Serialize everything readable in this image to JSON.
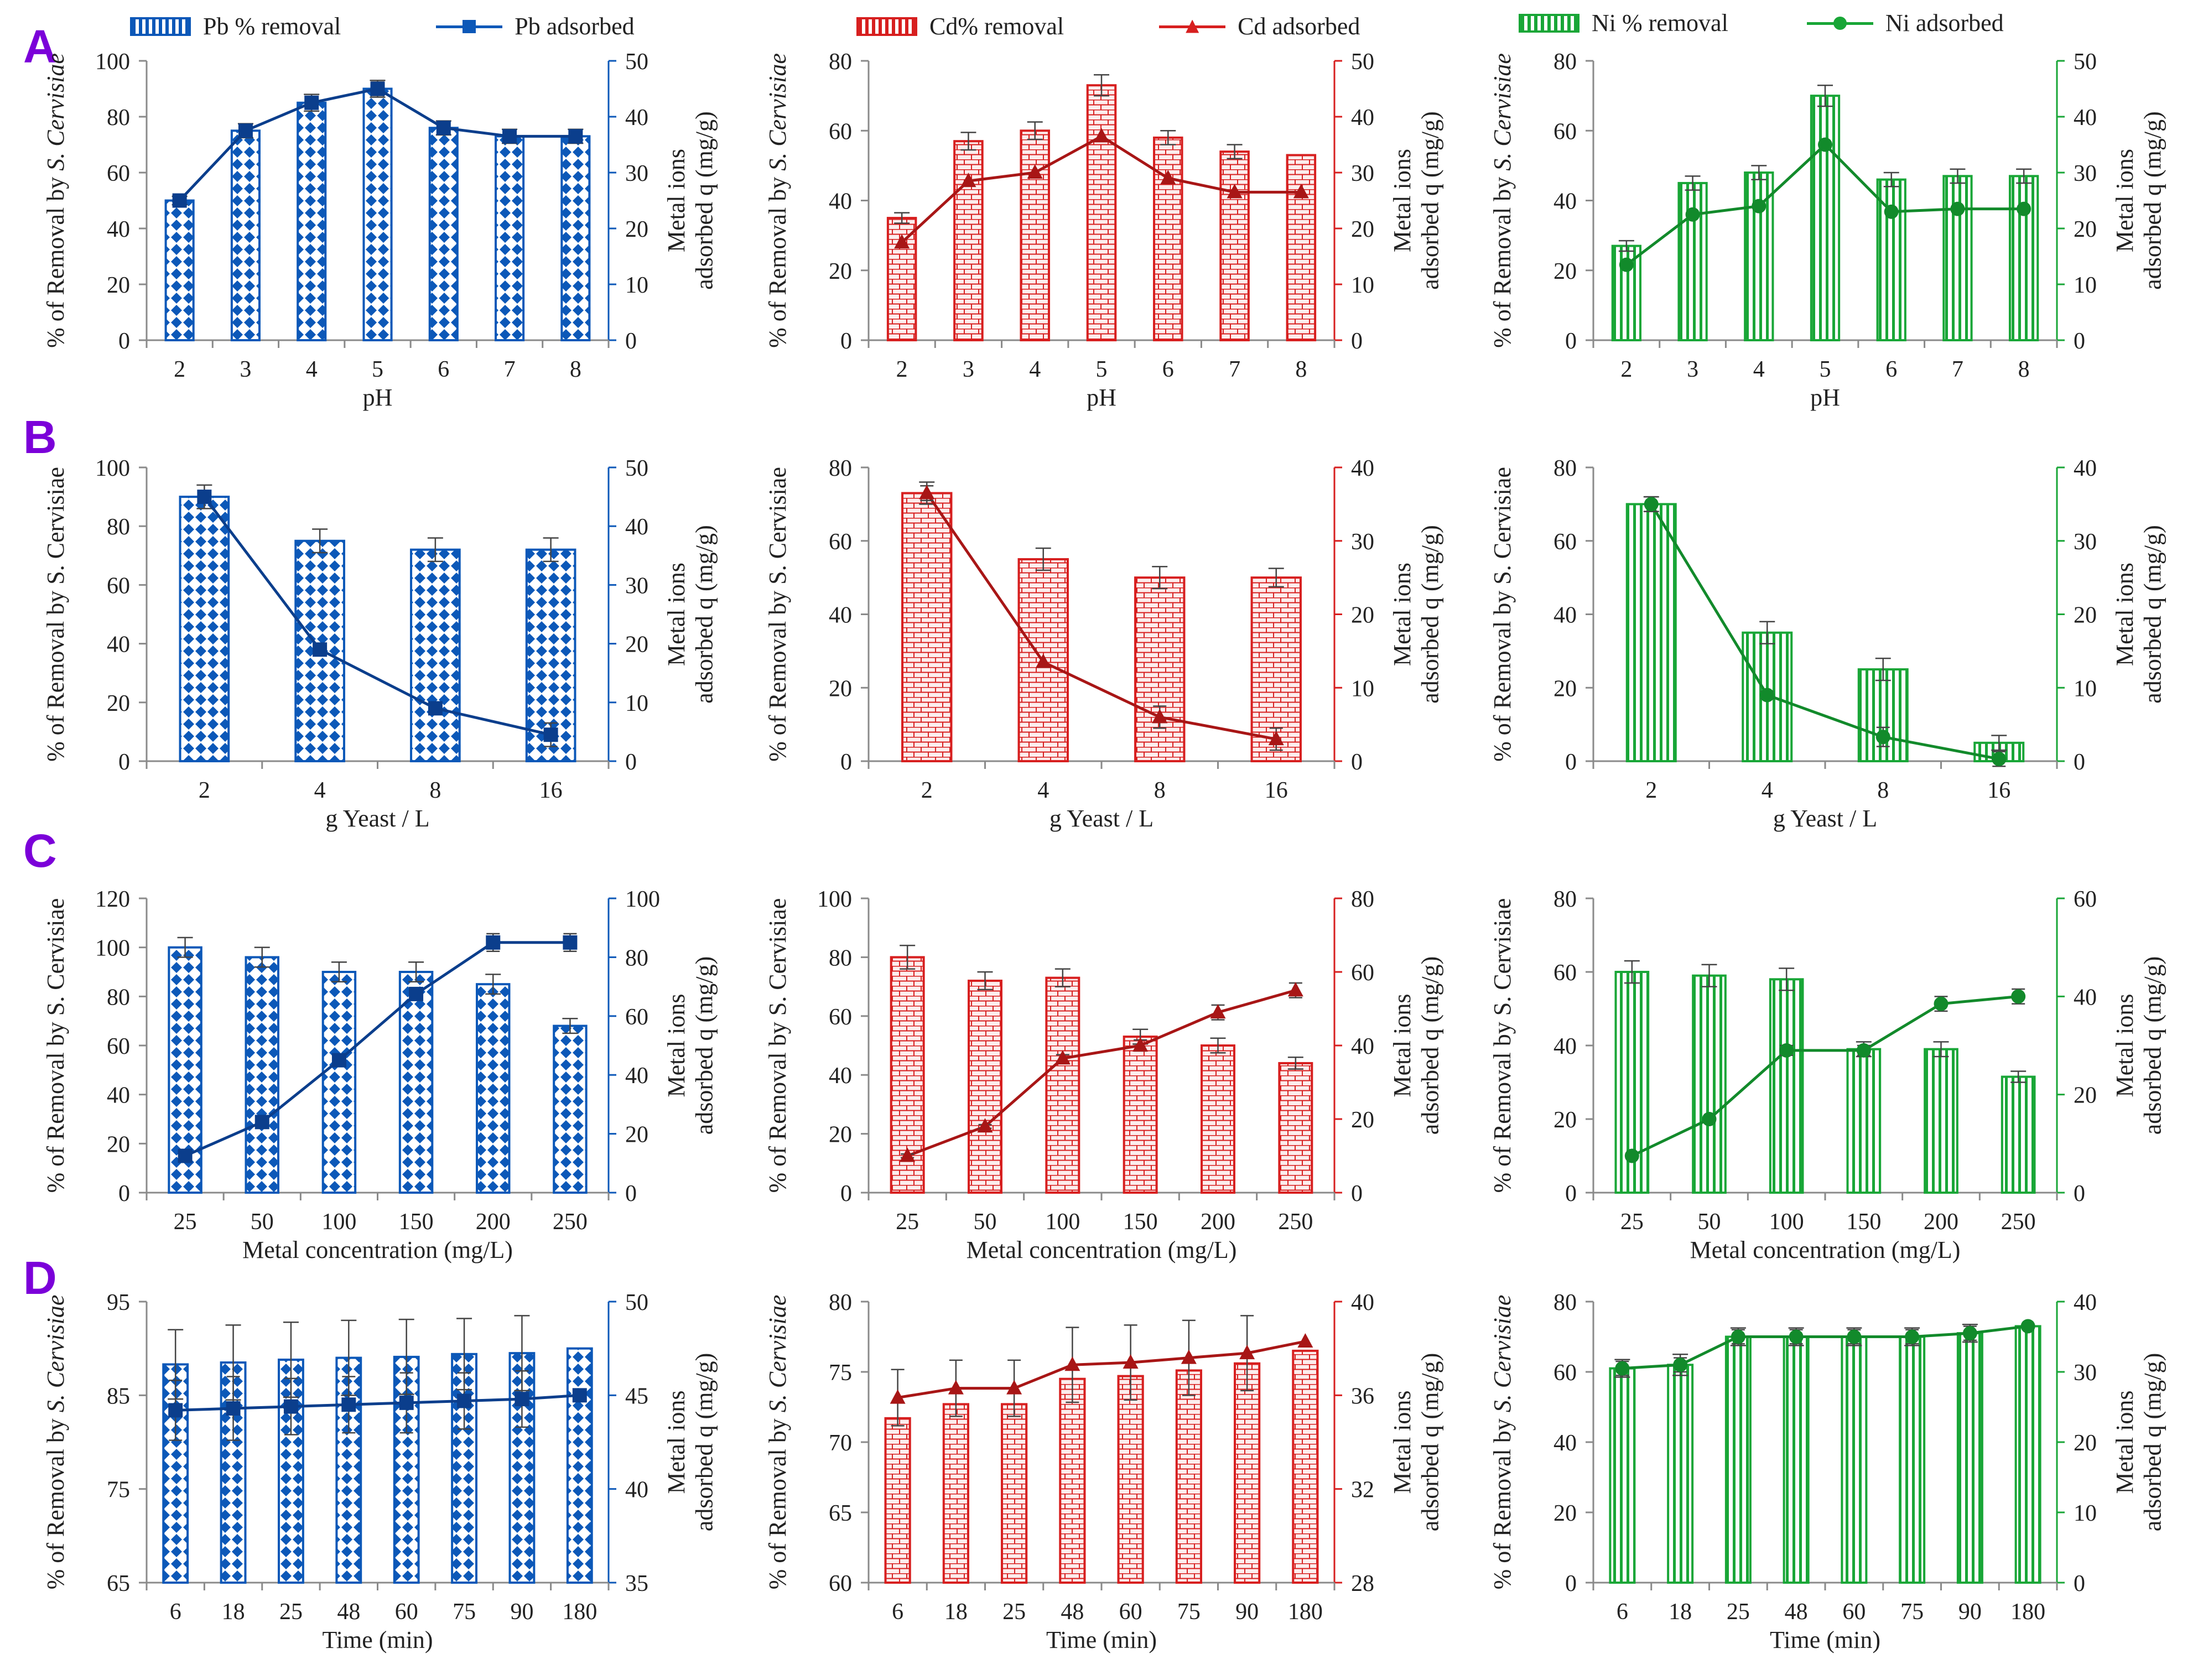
{
  "legends": [
    {
      "bar_label": "Pb % removal",
      "line_label": "Pb adsorbed",
      "color": "#0C58B8",
      "marker": "square",
      "pattern": "diamond"
    },
    {
      "bar_label": "Cd% removal",
      "line_label": "Cd adsorbed",
      "color": "#D71F1F",
      "marker": "triangle",
      "pattern": "brick"
    },
    {
      "bar_label": "Ni % removal",
      "line_label": "Ni adsorbed",
      "color": "#19A637",
      "marker": "circle",
      "pattern": "vstripe"
    }
  ],
  "row_labels": [
    "A",
    "B",
    "C",
    "D"
  ],
  "metals": [
    {
      "color": "#0C58B8",
      "dark": "#0B3E8C",
      "marker": "square",
      "pattern": "diamond"
    },
    {
      "color": "#D71F1F",
      "dark": "#A81616",
      "marker": "triangle",
      "pattern": "brick"
    },
    {
      "color": "#19A637",
      "dark": "#128A2B",
      "marker": "circle",
      "pattern": "vstripe"
    }
  ],
  "chart_data": [
    {
      "type": "bar+line",
      "row": "A",
      "metal": "Pb",
      "xlabel": "pH",
      "ylabel": "% of Removal by S. Cervisiae",
      "ylabel_italic_part": "S. Cervisiae",
      "y2label": [
        "Metal ions",
        "adsorbed q (mg/g)"
      ],
      "categories": [
        "2",
        "3",
        "4",
        "5",
        "6",
        "7",
        "8"
      ],
      "bars": [
        50,
        75,
        85,
        90,
        76,
        73,
        73
      ],
      "bar_err": [
        1.5,
        2.5,
        3,
        3,
        2.5,
        2.5,
        2.5
      ],
      "line": [
        25,
        37.5,
        42.5,
        45,
        38,
        36.5,
        36.5
      ],
      "line_err": [
        0.6,
        1,
        1,
        1.2,
        1,
        1,
        1
      ],
      "ylim": [
        0,
        100
      ],
      "yticks": [
        0,
        20,
        40,
        60,
        80,
        100
      ],
      "y2lim": [
        0,
        50
      ],
      "y2ticks": [
        0,
        10,
        20,
        30,
        40,
        50
      ]
    },
    {
      "type": "bar+line",
      "row": "A",
      "metal": "Cd",
      "xlabel": "pH",
      "ylabel": "% of Removal by S. Cervisiae",
      "ylabel_italic_part": "S. Cervisiae",
      "y2label": [
        "Metal ions",
        "adsorbed q (mg/g)"
      ],
      "categories": [
        "2",
        "3",
        "4",
        "5",
        "6",
        "7",
        "8"
      ],
      "bars": [
        35,
        57,
        60,
        73,
        58,
        54,
        53
      ],
      "bar_err": [
        1.5,
        2.5,
        2.5,
        3,
        2,
        2,
        0
      ],
      "line": [
        17.5,
        28.5,
        30,
        36.5,
        29,
        26.5,
        26.5
      ],
      "line_err": [
        0,
        0,
        0,
        0,
        0,
        0,
        0
      ],
      "ylim": [
        0,
        80
      ],
      "yticks": [
        0,
        20,
        40,
        60,
        80
      ],
      "y2lim": [
        0,
        50
      ],
      "y2ticks": [
        0,
        10,
        20,
        30,
        40,
        50
      ]
    },
    {
      "type": "bar+line",
      "row": "A",
      "metal": "Ni",
      "xlabel": "pH",
      "ylabel": "% of Removal by S. Cervisiae",
      "ylabel_italic_part": "S. Cervisiae",
      "y2label": [
        "Metal ions",
        "adsorbed q (mg/g)"
      ],
      "categories": [
        "2",
        "3",
        "4",
        "5",
        "6",
        "7",
        "8"
      ],
      "bars": [
        27,
        45,
        48,
        70,
        46,
        47,
        47
      ],
      "bar_err": [
        1.5,
        2,
        2,
        3,
        2,
        2,
        2
      ],
      "line": [
        13.5,
        22.5,
        24,
        35,
        23,
        23.5,
        23.5
      ],
      "line_err": [
        0,
        0,
        0,
        0,
        0,
        0,
        0
      ],
      "ylim": [
        0,
        80
      ],
      "yticks": [
        0,
        20,
        40,
        60,
        80
      ],
      "y2lim": [
        0,
        50
      ],
      "y2ticks": [
        0,
        10,
        20,
        30,
        40,
        50
      ]
    },
    {
      "type": "bar+line",
      "row": "B",
      "metal": "Pb",
      "xlabel": "g Yeast / L",
      "ylabel": "% of Removal by S. Cervisiae",
      "ylabel_italic_part": "",
      "y2label": [
        "Metal ions",
        "adsorbed q (mg/g)"
      ],
      "categories": [
        "2",
        "4",
        "8",
        "16"
      ],
      "bars": [
        90,
        75,
        72,
        72
      ],
      "bar_err": [
        4,
        4,
        4,
        4
      ],
      "line": [
        45,
        19,
        9,
        4.5
      ],
      "line_err": [
        1,
        0,
        1,
        2
      ],
      "ylim": [
        0,
        100
      ],
      "yticks": [
        0,
        20,
        40,
        60,
        80,
        100
      ],
      "y2lim": [
        0,
        50
      ],
      "y2ticks": [
        0,
        10,
        20,
        30,
        40,
        50
      ]
    },
    {
      "type": "bar+line",
      "row": "B",
      "metal": "Cd",
      "xlabel": "g Yeast / L",
      "ylabel": "% of Removal by S. Cervisiae",
      "ylabel_italic_part": "",
      "y2label": [
        "Metal ions",
        "adsorbed q (mg/g)"
      ],
      "categories": [
        "2",
        "4",
        "8",
        "16"
      ],
      "bars": [
        73,
        55,
        50,
        50
      ],
      "bar_err": [
        3,
        3,
        3,
        2.5
      ],
      "line": [
        36.5,
        13.5,
        6,
        3
      ],
      "line_err": [
        1,
        0,
        1.5,
        1.5
      ],
      "ylim": [
        0,
        80
      ],
      "yticks": [
        0,
        20,
        40,
        60,
        80
      ],
      "y2lim": [
        0,
        40
      ],
      "y2ticks": [
        0,
        10,
        20,
        30,
        40
      ]
    },
    {
      "type": "bar+line",
      "row": "B",
      "metal": "Ni",
      "xlabel": "g Yeast / L",
      "ylabel": "% of Removal by S. Cervisiae",
      "ylabel_italic_part": "",
      "y2label": [
        "Metal ions",
        "adsorbed q (mg/g)"
      ],
      "categories": [
        "2",
        "4",
        "8",
        "16"
      ],
      "bars": [
        70,
        35,
        25,
        5
      ],
      "bar_err": [
        2,
        3,
        3,
        2
      ],
      "line": [
        35,
        9,
        3.3,
        0.3
      ],
      "line_err": [
        1,
        0.5,
        1.3,
        1
      ],
      "ylim": [
        0,
        80
      ],
      "yticks": [
        0,
        20,
        40,
        60,
        80
      ],
      "y2lim": [
        0,
        40
      ],
      "y2ticks": [
        0,
        10,
        20,
        30,
        40
      ]
    },
    {
      "type": "bar+line",
      "row": "C",
      "metal": "Pb",
      "xlabel": "Metal concentration (mg/L)",
      "ylabel": "% of Removal by S. Cervisiae",
      "ylabel_italic_part": "",
      "y2label": [
        "Metal ions",
        "adsorbed q (mg/g)"
      ],
      "categories": [
        "25",
        "50",
        "100",
        "150",
        "200",
        "250"
      ],
      "bars": [
        100,
        96,
        90,
        90,
        85,
        68
      ],
      "bar_err": [
        4,
        4,
        4,
        4,
        4,
        3
      ],
      "line": [
        12.5,
        24,
        45,
        67.5,
        85,
        85
      ],
      "line_err": [
        1.5,
        1,
        1.5,
        2,
        3,
        3
      ],
      "ylim": [
        0,
        120
      ],
      "yticks": [
        0,
        20,
        40,
        60,
        80,
        100,
        120
      ],
      "y2lim": [
        0,
        100
      ],
      "y2ticks": [
        0,
        20,
        40,
        60,
        80,
        100
      ]
    },
    {
      "type": "bar+line",
      "row": "C",
      "metal": "Cd",
      "xlabel": "Metal concentration (mg/L)",
      "ylabel": "% of Removal by S. Cervisiae",
      "ylabel_italic_part": "",
      "y2label": [
        "Metal ions",
        "adsorbed q (mg/g)"
      ],
      "categories": [
        "25",
        "50",
        "100",
        "150",
        "200",
        "250"
      ],
      "bars": [
        80,
        72,
        73,
        53,
        50,
        44
      ],
      "bar_err": [
        4,
        3,
        3,
        2.5,
        2.5,
        2
      ],
      "line": [
        10,
        18,
        36.5,
        40,
        49,
        55
      ],
      "line_err": [
        0.5,
        0.5,
        1,
        1.5,
        2,
        2
      ],
      "ylim": [
        0,
        100
      ],
      "yticks": [
        0,
        20,
        40,
        60,
        80,
        100
      ],
      "y2lim": [
        0,
        80
      ],
      "y2ticks": [
        0,
        20,
        40,
        60,
        80
      ]
    },
    {
      "type": "bar+line",
      "row": "C",
      "metal": "Ni",
      "xlabel": "Metal concentration (mg/L)",
      "ylabel": "% of Removal by S. Cervisiae",
      "ylabel_italic_part": "",
      "y2label": [
        "Metal ions",
        "adsorbed q (mg/g)"
      ],
      "categories": [
        "25",
        "50",
        "100",
        "150",
        "200",
        "250"
      ],
      "bars": [
        60,
        59,
        58,
        39,
        39,
        31.5
      ],
      "bar_err": [
        3,
        3,
        3,
        2,
        2,
        1.5
      ],
      "line": [
        7.5,
        15,
        29,
        29,
        38.5,
        40
      ],
      "line_err": [
        0.5,
        0.5,
        1,
        1,
        1.5,
        1.5
      ],
      "ylim": [
        0,
        80
      ],
      "yticks": [
        0,
        20,
        40,
        60,
        80
      ],
      "y2lim": [
        0,
        60
      ],
      "y2ticks": [
        0,
        20,
        40,
        60
      ]
    },
    {
      "type": "bar+line",
      "row": "D",
      "metal": "Pb",
      "xlabel": "Time  (min)",
      "ylabel": "% of Removal by S. Cervisiae",
      "ylabel_italic_part": "S. Cervisiae",
      "y2label": [
        "Metal ions",
        "adsorbed q (mg/g)"
      ],
      "categories": [
        "6",
        "18",
        "25",
        "48",
        "60",
        "75",
        "90",
        "180"
      ],
      "bars": [
        88.3,
        88.5,
        88.8,
        89,
        89.1,
        89.4,
        89.5,
        90
      ],
      "bar_err": [
        3.7,
        4,
        4,
        4,
        4,
        3.8,
        4,
        0
      ],
      "line": [
        44.2,
        44.3,
        44.4,
        44.5,
        44.6,
        44.7,
        44.8,
        45
      ],
      "line_err": [
        1.6,
        1.7,
        1.5,
        1.5,
        1.6,
        1.5,
        1.5,
        0
      ],
      "ylim": [
        65,
        95
      ],
      "yticks": [
        65,
        75,
        85,
        95
      ],
      "y2lim": [
        35,
        50
      ],
      "y2ticks": [
        35,
        40,
        45,
        50
      ]
    },
    {
      "type": "bar+line",
      "row": "D",
      "metal": "Cd",
      "xlabel": "Time  (min)",
      "ylabel": "% of Removal by S. Cervisiae",
      "ylabel_italic_part": "S. Cervisiae",
      "y2label": [
        "Metal ions",
        "adsorbed q (mg/g)"
      ],
      "categories": [
        "6",
        "18",
        "25",
        "48",
        "60",
        "75",
        "90",
        "180"
      ],
      "bars": [
        71.7,
        72.7,
        72.7,
        74.5,
        74.7,
        75.1,
        75.6,
        76.5
      ],
      "bar_err": [
        0,
        0,
        0,
        0,
        0,
        0,
        0,
        0
      ],
      "line": [
        35.9,
        36.3,
        36.3,
        37.3,
        37.4,
        37.6,
        37.8,
        38.3
      ],
      "line_err": [
        1.2,
        1.2,
        1.2,
        1.6,
        1.6,
        1.6,
        1.6,
        0
      ],
      "ylim": [
        60,
        80
      ],
      "yticks": [
        60,
        65,
        70,
        75,
        80
      ],
      "y2lim": [
        28,
        40
      ],
      "y2ticks": [
        28,
        32,
        36,
        40
      ]
    },
    {
      "type": "bar+line",
      "row": "D",
      "metal": "Ni",
      "xlabel": "Time  (min)",
      "ylabel": "% of Removal by S. Cervisiae",
      "ylabel_italic_part": "S. Cervisiae",
      "y2label": [
        "Metal ions",
        "adsorbed q (mg/g)"
      ],
      "categories": [
        "6",
        "18",
        "25",
        "48",
        "60",
        "75",
        "90",
        "180"
      ],
      "bars": [
        61,
        62,
        70,
        70,
        70,
        70,
        71,
        73
      ],
      "bar_err": [
        2.5,
        3,
        2.5,
        2.5,
        2.5,
        2.5,
        2.5,
        0
      ],
      "line": [
        30.5,
        31,
        35,
        35,
        35,
        35,
        35.5,
        36.5
      ],
      "line_err": [
        1,
        1,
        1,
        1,
        1,
        1,
        1,
        0
      ],
      "ylim": [
        0,
        80
      ],
      "yticks": [
        0,
        20,
        40,
        60,
        80
      ],
      "y2lim": [
        0,
        40
      ],
      "y2ticks": [
        0,
        10,
        20,
        30,
        40
      ]
    }
  ]
}
